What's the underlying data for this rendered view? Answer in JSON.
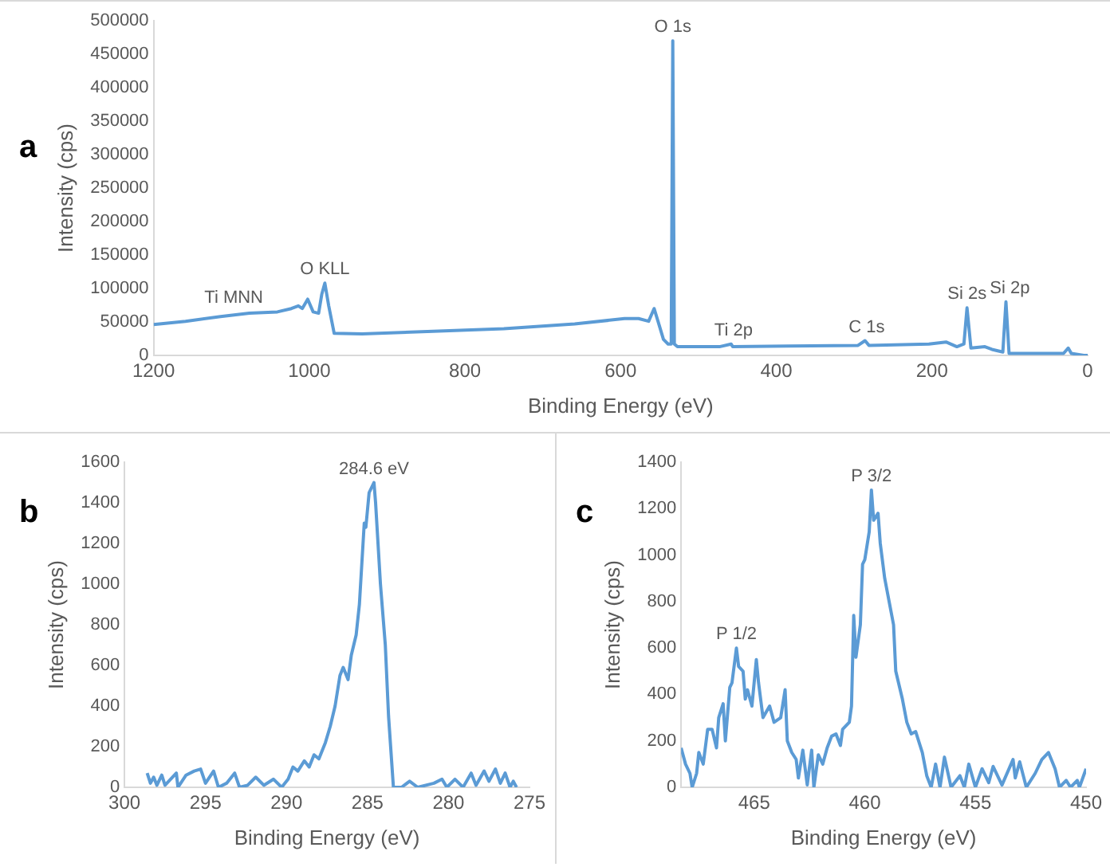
{
  "chart_data": [
    {
      "type": "line",
      "title": "a",
      "xlabel": "Binding Energy (eV)",
      "ylabel": "Intensity (cps)",
      "color": "#5b9bd5",
      "x": [
        1200,
        1159,
        1114,
        1077,
        1041,
        1023,
        1014,
        1009,
        1002,
        995,
        988,
        984,
        980,
        975,
        968,
        932,
        841,
        750,
        659,
        595,
        577,
        564,
        557,
        552,
        545,
        539,
        535,
        533,
        531,
        527,
        473,
        458,
        456,
        385,
        295,
        286,
        281,
        204,
        182,
        168,
        159,
        155,
        150,
        132,
        123,
        109,
        105,
        101,
        31,
        25,
        21,
        5,
        0
      ],
      "values": [
        46000,
        51000,
        58000,
        63000,
        65000,
        70000,
        74000,
        70000,
        84000,
        65000,
        63000,
        91000,
        108000,
        74000,
        33000,
        32000,
        36000,
        40000,
        47000,
        55000,
        55000,
        51000,
        70000,
        51000,
        24000,
        17000,
        17000,
        470000,
        17000,
        13000,
        13000,
        17000,
        13000,
        14000,
        15000,
        22000,
        15000,
        17000,
        20000,
        13000,
        17000,
        71000,
        11000,
        13000,
        9000,
        5000,
        80000,
        3000,
        3000,
        11000,
        3000,
        0,
        0
      ],
      "xlim": [
        1200,
        0
      ],
      "xticks": [
        1200,
        1000,
        800,
        600,
        400,
        200,
        0
      ],
      "ylim": [
        0,
        500000
      ],
      "yticks": [
        0,
        50000,
        100000,
        150000,
        200000,
        250000,
        300000,
        350000,
        400000,
        450000,
        500000
      ],
      "annotations": [
        {
          "text": "Ti MNN",
          "x": 1097,
          "y": 65000
        },
        {
          "text": "O KLL",
          "x": 980,
          "y": 108000
        },
        {
          "text": "O 1s",
          "x": 533,
          "y": 470000
        },
        {
          "text": "Ti 2p",
          "x": 455,
          "y": 17000
        },
        {
          "text": "C 1s",
          "x": 284,
          "y": 22000
        },
        {
          "text": "Si 2s",
          "x": 155,
          "y": 71000
        },
        {
          "text": "Si 2p",
          "x": 100,
          "y": 80000
        }
      ]
    },
    {
      "type": "line",
      "title": "b",
      "xlabel": "Binding Energy (eV)",
      "ylabel": "Intensity (cps)",
      "color": "#5b9bd5",
      "x": [
        298.6,
        298.4,
        298.2,
        298.0,
        297.7,
        297.5,
        296.8,
        296.7,
        296.2,
        295.7,
        295.3,
        295.0,
        294.5,
        294.2,
        293.7,
        293.2,
        292.9,
        292.4,
        291.9,
        291.4,
        290.8,
        290.3,
        289.9,
        289.6,
        289.3,
        288.9,
        288.6,
        288.3,
        288.0,
        287.6,
        287.3,
        287.0,
        286.7,
        286.5,
        286.2,
        286.0,
        285.7,
        285.5,
        285.2,
        285.1,
        284.9,
        284.6,
        284.5,
        284.2,
        283.9,
        283.7,
        283.4,
        282.9,
        282.4,
        281.9,
        280.9,
        280.4,
        280.1,
        279.6,
        279.1,
        278.6,
        278.3,
        277.8,
        277.5,
        277.1,
        276.8,
        276.5,
        276.2,
        276.0,
        275.8
      ],
      "values": [
        70,
        20,
        50,
        10,
        60,
        10,
        70,
        0,
        60,
        80,
        90,
        20,
        80,
        0,
        20,
        70,
        0,
        10,
        50,
        10,
        40,
        0,
        40,
        100,
        80,
        130,
        100,
        160,
        140,
        220,
        300,
        400,
        550,
        590,
        530,
        650,
        750,
        900,
        1300,
        1280,
        1450,
        1500,
        1400,
        1000,
        700,
        350,
        0,
        0,
        30,
        0,
        20,
        40,
        0,
        40,
        0,
        70,
        10,
        80,
        30,
        90,
        20,
        70,
        0,
        30,
        0
      ],
      "xlim": [
        300,
        275
      ],
      "xticks": [
        300,
        295,
        290,
        285,
        280,
        275
      ],
      "ylim": [
        0,
        1600
      ],
      "yticks": [
        0,
        200,
        400,
        600,
        800,
        1000,
        1200,
        1400,
        1600
      ],
      "annotations": [
        {
          "text": "284.6 eV",
          "x": 284.6,
          "y": 1500
        }
      ]
    },
    {
      "type": "line",
      "title": "c",
      "xlabel": "Binding Energy (eV)",
      "ylabel": "Intensity (cps)",
      "color": "#5b9bd5",
      "x": [
        468.3,
        468.1,
        467.9,
        467.8,
        467.6,
        467.5,
        467.3,
        467.1,
        466.9,
        466.7,
        466.6,
        466.4,
        466.3,
        466.1,
        466.0,
        465.8,
        465.7,
        465.5,
        465.4,
        465.3,
        465.1,
        464.9,
        464.8,
        464.6,
        464.3,
        464.1,
        463.8,
        463.6,
        463.5,
        463.3,
        463.1,
        463.0,
        462.8,
        462.6,
        462.4,
        462.3,
        462.1,
        461.9,
        461.7,
        461.5,
        461.3,
        461.1,
        461.0,
        460.7,
        460.6,
        460.5,
        460.4,
        460.2,
        460.1,
        460.0,
        459.8,
        459.7,
        459.6,
        459.4,
        459.3,
        459.1,
        458.9,
        458.7,
        458.6,
        458.3,
        458.1,
        457.9,
        457.7,
        457.4,
        457.2,
        457.0,
        456.8,
        456.6,
        456.4,
        456.1,
        455.7,
        455.5,
        455.3,
        455.0,
        454.7,
        454.4,
        454.2,
        453.8,
        453.3,
        453.2,
        453.0,
        452.7,
        452.3,
        452.0,
        451.7,
        451.4,
        451.2,
        450.9,
        450.7,
        450.4,
        450.3,
        450.0
      ],
      "values": [
        170,
        100,
        60,
        0,
        60,
        150,
        100,
        250,
        250,
        170,
        300,
        360,
        200,
        430,
        450,
        600,
        520,
        500,
        380,
        420,
        350,
        550,
        450,
        300,
        350,
        280,
        300,
        420,
        200,
        150,
        120,
        40,
        160,
        10,
        160,
        0,
        140,
        100,
        170,
        220,
        230,
        180,
        250,
        280,
        350,
        740,
        560,
        700,
        960,
        980,
        1100,
        1280,
        1150,
        1180,
        1050,
        900,
        800,
        700,
        500,
        380,
        280,
        230,
        240,
        150,
        50,
        0,
        100,
        0,
        130,
        0,
        50,
        0,
        100,
        0,
        80,
        20,
        90,
        10,
        120,
        40,
        110,
        0,
        60,
        120,
        150,
        80,
        0,
        30,
        0,
        30,
        0,
        80
      ],
      "xlim": [
        468.3,
        450
      ],
      "xticks": [
        465,
        460,
        455,
        450
      ],
      "ylim": [
        0,
        1400
      ],
      "yticks": [
        0,
        200,
        400,
        600,
        800,
        1000,
        1200,
        1400
      ],
      "annotations": [
        {
          "text": "P 1/2",
          "x": 465.8,
          "y": 600
        },
        {
          "text": "P 3/2",
          "x": 459.7,
          "y": 1280
        }
      ]
    }
  ]
}
